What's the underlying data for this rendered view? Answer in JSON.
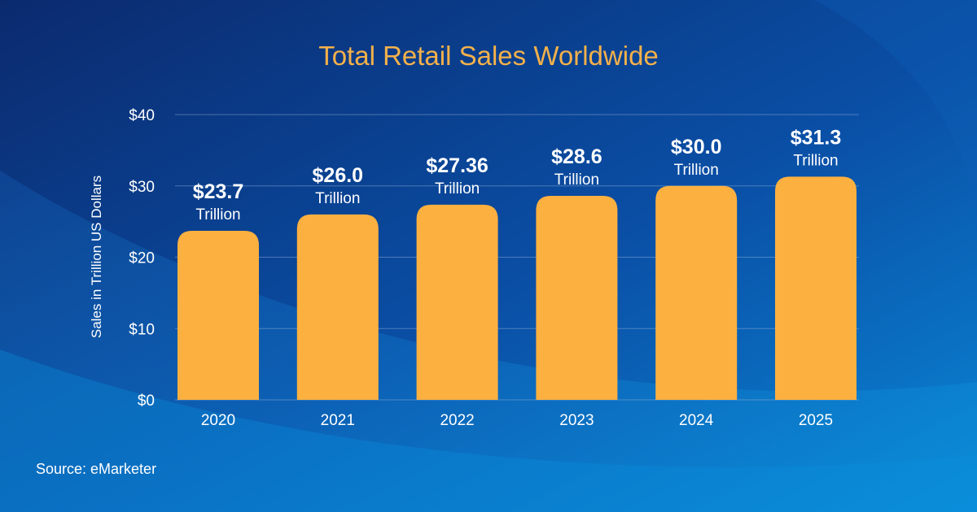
{
  "source": "Source: eMarketer",
  "colors": {
    "bar": "#fbb040",
    "text": "#ffffff",
    "title": "#f4b14a",
    "grid": "#9fb6d8"
  },
  "chart_data": {
    "type": "bar",
    "title": "Total Retail Sales Worldwide",
    "xlabel": "",
    "ylabel": "Sales in Trillion US Dollars",
    "categories": [
      "2020",
      "2021",
      "2022",
      "2023",
      "2024",
      "2025"
    ],
    "values": [
      23.7,
      26.0,
      27.36,
      28.6,
      30.0,
      31.3
    ],
    "value_labels": [
      "$23.7",
      "$26.0",
      "$27.36",
      "$28.6",
      "$30.0",
      "$31.3"
    ],
    "value_unit": "Trillion",
    "ylim": [
      0,
      40
    ],
    "yticks": [
      0,
      10,
      20,
      30,
      40
    ],
    "ytick_labels": [
      "$0",
      "$10",
      "$20",
      "$30",
      "$40"
    ],
    "grid": true,
    "legend": "none"
  }
}
